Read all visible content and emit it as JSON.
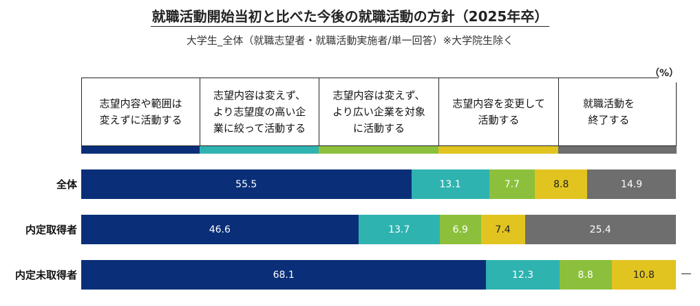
{
  "chart_data": {
    "type": "bar",
    "orientation": "horizontal",
    "stacked": true,
    "title": "就職活動開始当初と比べた今後の就職活動の方針（2025年卒）",
    "subtitle": "大学生_全体（就職志望者・就職活動実施者/単一回答）※大学院生除く",
    "unit": "（%）",
    "categories": [
      "全体",
      "内定取得者",
      "内定未取得者"
    ],
    "xlim": [
      0,
      100
    ],
    "grid": false,
    "legend": "top",
    "series": [
      {
        "name": "志望内容や範囲は変えずに活動する",
        "label_lines": [
          "志望内容や範囲は",
          "変えずに活動する"
        ],
        "color": "#0a2f78",
        "text_color": "#ffffff",
        "values": [
          55.5,
          46.6,
          68.1
        ]
      },
      {
        "name": "志望内容は変えず、より志望度の高い企業に絞って活動する",
        "label_lines": [
          "志望内容は変えず、",
          "より志望度の高い企",
          "業に絞って活動する"
        ],
        "color": "#2fb3b0",
        "text_color": "#ffffff",
        "values": [
          13.1,
          13.7,
          12.3
        ]
      },
      {
        "name": "志望内容は変えず、より広い企業を対象に活動する",
        "label_lines": [
          "志望内容は変えず、",
          "より広い企業を対象",
          "に活動する"
        ],
        "color": "#8cc03c",
        "text_color": "#ffffff",
        "values": [
          7.7,
          6.9,
          8.8
        ]
      },
      {
        "name": "志望内容を変更して活動する",
        "label_lines": [
          "志望内容を変更して",
          "活動する"
        ],
        "color": "#e2c420",
        "text_color": "#222222",
        "values": [
          8.8,
          7.4,
          10.8
        ]
      },
      {
        "name": "就職活動を終了する",
        "label_lines": [
          "就職活動を",
          "終了する"
        ],
        "color": "#6e6e6e",
        "text_color": "#ffffff",
        "values": [
          14.9,
          25.4,
          0
        ]
      }
    ],
    "zero_label": "―"
  }
}
